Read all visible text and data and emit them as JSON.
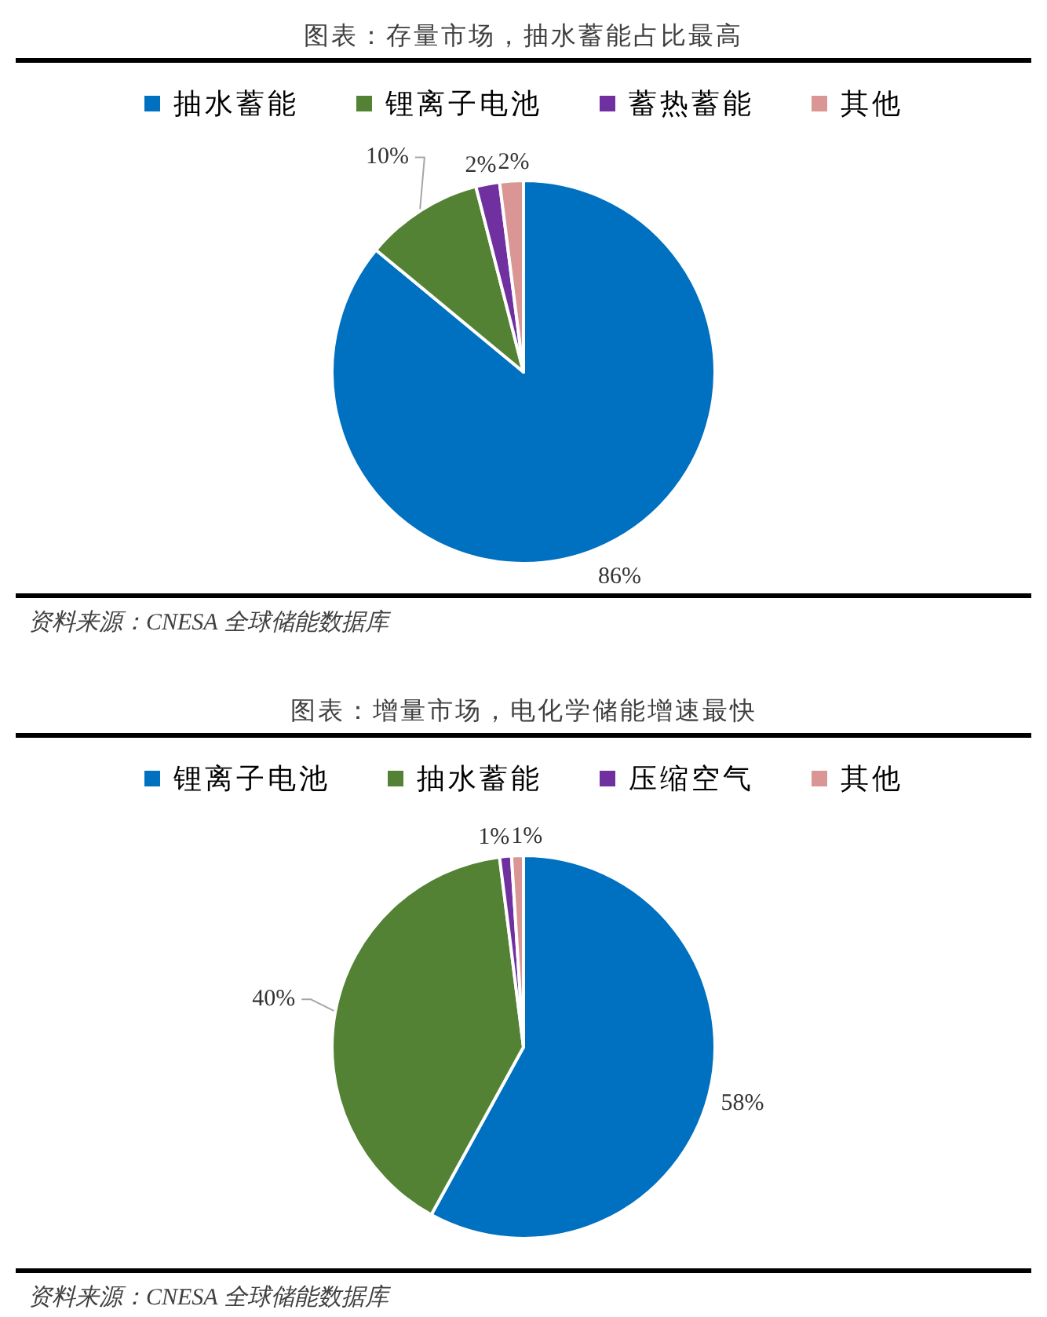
{
  "chart_data": [
    {
      "type": "pie",
      "title": "图表：存量市场，抽水蓄能占比最高",
      "categories": [
        "抽水蓄能",
        "锂离子电池",
        "蓄热蓄能",
        "其他"
      ],
      "values": [
        86,
        10,
        2,
        2
      ],
      "colors": [
        "#0070c0",
        "#548235",
        "#7030a0",
        "#d99694"
      ],
      "value_labels": [
        "86%",
        "10%",
        "2%",
        "2%"
      ],
      "legend": "top",
      "annotations": [
        "资料来源：CNESA 全球储能数据库"
      ]
    },
    {
      "type": "pie",
      "title": "图表：增量市场，电化学储能增速最快",
      "categories": [
        "锂离子电池",
        "抽水蓄能",
        "压缩空气",
        "其他"
      ],
      "values": [
        58,
        40,
        1,
        1
      ],
      "colors": [
        "#0070c0",
        "#548235",
        "#7030a0",
        "#d99694"
      ],
      "value_labels": [
        "58%",
        "40%",
        "1%",
        "1%"
      ],
      "legend": "top",
      "annotations": [
        "资料来源：CNESA 全球储能数据库"
      ]
    }
  ]
}
